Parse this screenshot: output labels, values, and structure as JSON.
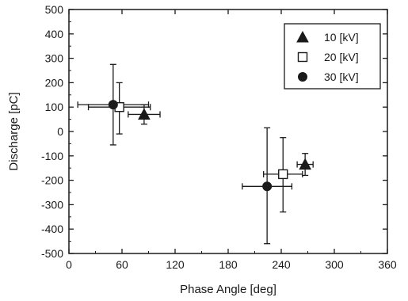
{
  "chart_data": {
    "type": "scatter",
    "title": "",
    "xlabel": "Phase Angle [deg]",
    "ylabel": "Discharge [pC]",
    "xlim": [
      0,
      360
    ],
    "ylim": [
      -500,
      500
    ],
    "xticks": [
      0,
      60,
      120,
      180,
      240,
      300,
      360
    ],
    "yticks": [
      500,
      400,
      300,
      200,
      100,
      0,
      -100,
      -200,
      -300,
      -400,
      -500
    ],
    "grid": false,
    "legend_position": "top-right",
    "series": [
      {
        "name": "10 [kV]",
        "marker": "triangle-filled",
        "points": [
          {
            "x": 85,
            "y": 70,
            "x_err": 18,
            "y_err_low": 40,
            "y_err_high": 40
          },
          {
            "x": 267,
            "y": -135,
            "x_err": 9,
            "y_err_low": 45,
            "y_err_high": 45
          }
        ]
      },
      {
        "name": "20 [kV]",
        "marker": "square-open",
        "points": [
          {
            "x": 57,
            "y": 100,
            "x_err": 35,
            "y_err_low": 110,
            "y_err_high": 100
          },
          {
            "x": 242,
            "y": -175,
            "x_err": 22,
            "y_err_low": 155,
            "y_err_high": 150
          }
        ]
      },
      {
        "name": "30 [kV]",
        "marker": "circle-filled",
        "points": [
          {
            "x": 50,
            "y": 110,
            "x_err": 40,
            "y_err_low": 165,
            "y_err_high": 165
          },
          {
            "x": 224,
            "y": -225,
            "x_err": 28,
            "y_err_low": 235,
            "y_err_high": 240
          }
        ]
      }
    ]
  }
}
